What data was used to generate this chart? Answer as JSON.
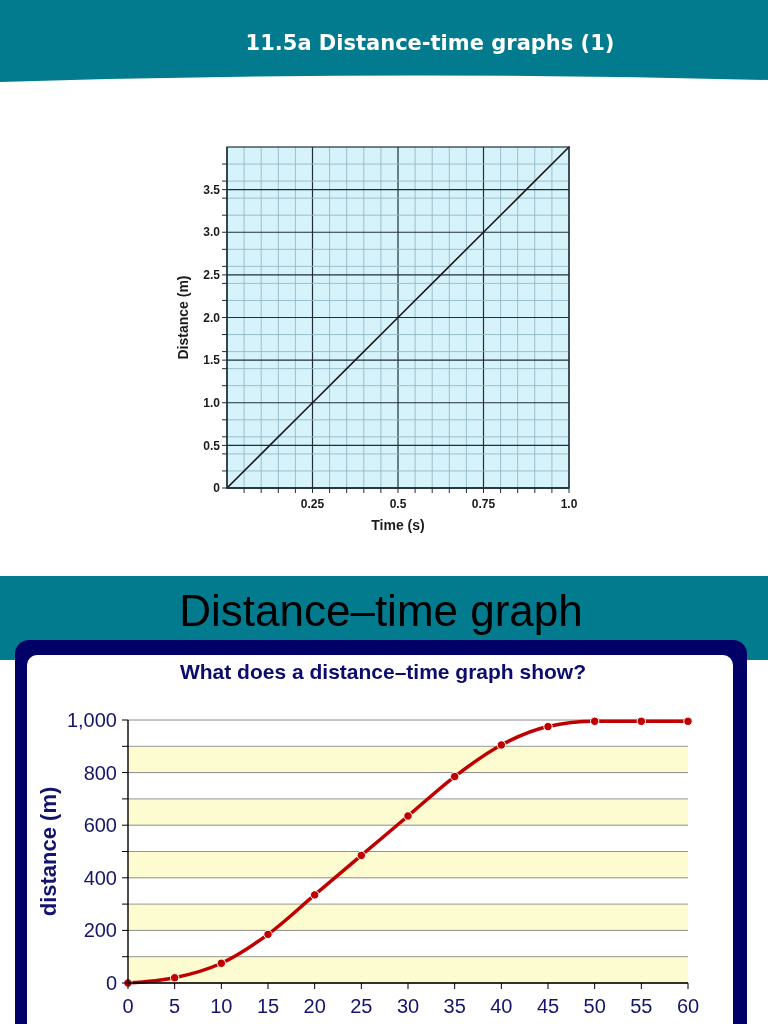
{
  "chart_data": [
    {
      "type": "line",
      "title": "11.5a Distance-time graphs (1)",
      "xlabel": "Time (s)",
      "ylabel": "Distance (m)",
      "x": [
        0,
        0.25,
        0.5,
        0.75,
        1.0
      ],
      "series": [
        {
          "color": "#1a1a1a",
          "values": [
            0,
            1.0,
            2.0,
            3.0,
            4.0
          ]
        }
      ],
      "xlim": [
        0,
        1.0
      ],
      "ylim": [
        0,
        4.0
      ],
      "xticks": [
        {
          "value": 0.05,
          "label": null
        },
        {
          "value": 0.1,
          "label": null
        },
        {
          "value": 0.15,
          "label": null
        },
        {
          "value": 0.2,
          "label": null
        },
        0.25,
        {
          "value": 0.3,
          "label": null
        },
        {
          "value": 0.35,
          "label": null
        },
        {
          "value": 0.4,
          "label": null
        },
        {
          "value": 0.45,
          "label": null
        },
        0.5,
        {
          "value": 0.55,
          "label": null
        },
        {
          "value": 0.6,
          "label": null
        },
        {
          "value": 0.65,
          "label": null
        },
        {
          "value": 0.7,
          "label": null
        },
        0.75,
        {
          "value": 0.8,
          "label": null
        },
        {
          "value": 0.85,
          "label": null
        },
        {
          "value": 0.9,
          "label": null
        },
        {
          "value": 0.95,
          "label": null
        },
        {
          "value": 1.0,
          "label": "1.0"
        }
      ],
      "yticks": [
        0,
        {
          "value": 0.2,
          "label": null
        },
        {
          "value": 0.4,
          "label": null
        },
        0.5,
        {
          "value": 0.6,
          "label": null
        },
        {
          "value": 0.8,
          "label": null
        },
        {
          "value": 1.0,
          "label": "1.0"
        },
        {
          "value": 1.2,
          "label": null
        },
        {
          "value": 1.4,
          "label": null
        },
        1.5,
        {
          "value": 1.6,
          "label": null
        },
        {
          "value": 1.8,
          "label": null
        },
        {
          "value": 2.0,
          "label": "2.0"
        },
        {
          "value": 2.2,
          "label": null
        },
        {
          "value": 2.4,
          "label": null
        },
        2.5,
        {
          "value": 2.6,
          "label": null
        },
        {
          "value": 2.8,
          "label": null
        },
        {
          "value": 3.0,
          "label": "3.0"
        },
        {
          "value": 3.2,
          "label": null
        },
        {
          "value": 3.4,
          "label": null
        },
        3.5,
        {
          "value": 3.6,
          "label": null
        },
        {
          "value": 3.8,
          "label": null
        }
      ],
      "grid": true
    },
    {
      "type": "line",
      "title": "Distance–time graph",
      "subtitle": "What does a distance–time graph show?",
      "ylabel": "distance (m)",
      "x": [
        0,
        5,
        10,
        15,
        20,
        25,
        30,
        35,
        40,
        45,
        50,
        55,
        60
      ],
      "series": [
        {
          "color": "#c00000",
          "values": [
            0,
            20,
            75,
            185,
            335,
            485,
            635,
            785,
            905,
            975,
            995,
            995,
            995
          ]
        }
      ],
      "xlim": [
        0,
        60
      ],
      "ylim": [
        0,
        1000
      ],
      "xticks": [
        0,
        5,
        10,
        15,
        20,
        25,
        30,
        35,
        40,
        45,
        50,
        55,
        60
      ],
      "yticks": [
        0,
        {
          "value": 100,
          "label": null
        },
        200,
        {
          "value": 300,
          "label": null
        },
        400,
        {
          "value": 500,
          "label": null
        },
        600,
        {
          "value": 700,
          "label": null
        },
        800,
        {
          "value": 900,
          "label": null
        },
        {
          "value": 1000,
          "label": "1,000"
        }
      ],
      "bands": [
        {
          "axis": "y",
          "from": 0,
          "to": 100,
          "color": "#fdfcd0"
        },
        {
          "axis": "y",
          "from": 200,
          "to": 300,
          "color": "#fdfcd0"
        },
        {
          "axis": "y",
          "from": 400,
          "to": 500,
          "color": "#fdfcd0"
        },
        {
          "axis": "y",
          "from": 600,
          "to": 700,
          "color": "#fdfcd0"
        },
        {
          "axis": "y",
          "from": 800,
          "to": 900,
          "color": "#fdfcd0"
        }
      ],
      "grid": "y",
      "marker": "circle"
    }
  ]
}
